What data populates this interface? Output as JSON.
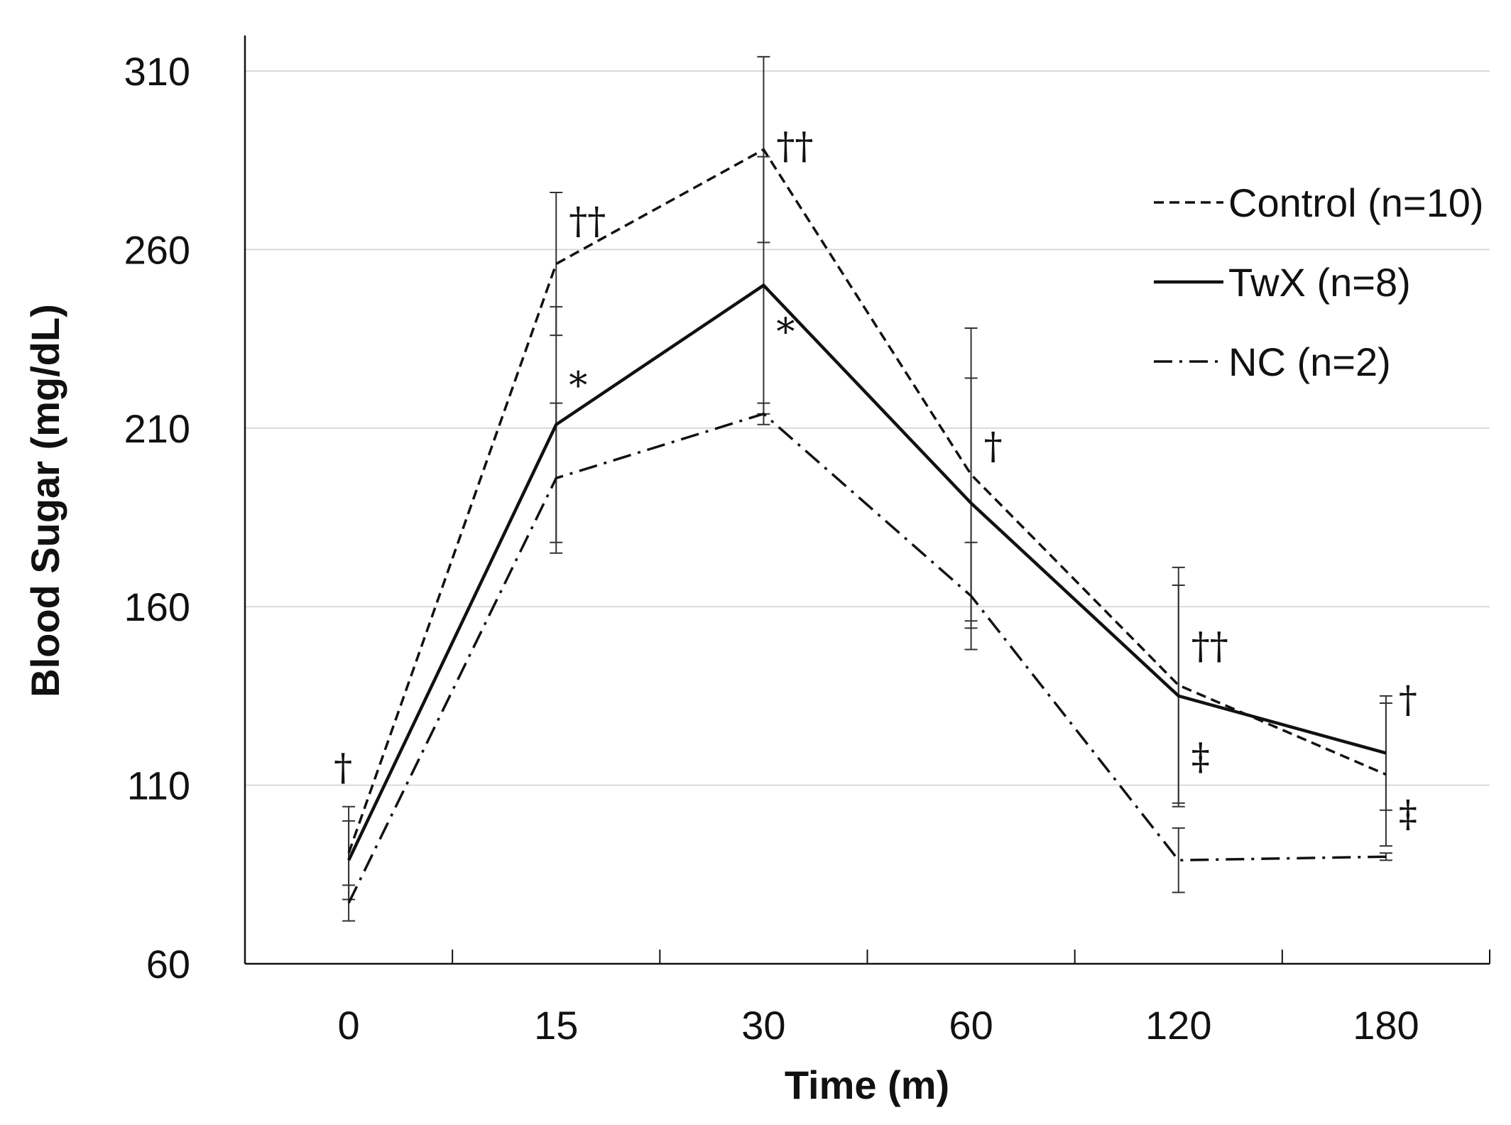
{
  "chart_data": {
    "type": "line",
    "xlabel": "Time (m)",
    "ylabel": "Blood Sugar (mg/dL)",
    "categories": [
      "0",
      "15",
      "30",
      "60",
      "120",
      "180"
    ],
    "ylim": [
      60,
      310
    ],
    "yticks": [
      "60",
      "110",
      "160",
      "210",
      "260",
      "310"
    ],
    "grid": "horizontal",
    "legend_position": "top-right",
    "series": [
      {
        "name": "Control (n=10)",
        "style": "dashed",
        "color": "#111111",
        "values": [
          91,
          256,
          288,
          197,
          138,
          113
        ],
        "error": [
          13,
          20,
          26,
          41,
          33,
          20
        ]
      },
      {
        "name": "TwX (n=8)",
        "style": "solid",
        "color": "#111111",
        "values": [
          89,
          211,
          250,
          189,
          135,
          119
        ],
        "error": [
          11,
          33,
          36,
          35,
          31,
          16
        ]
      },
      {
        "name": "NC (n=2)",
        "style": "dash-dot",
        "color": "#111111",
        "values": [
          77,
          196,
          214,
          163,
          89,
          90
        ],
        "error": [
          5,
          21,
          3,
          15,
          9,
          1
        ]
      }
    ],
    "annotations": [
      {
        "text": "†",
        "category": "0",
        "y": 115
      },
      {
        "text": "††",
        "category": "15",
        "y": 268
      },
      {
        "text": "*",
        "category": "15",
        "y": 222
      },
      {
        "text": "††",
        "category": "30",
        "y": 289
      },
      {
        "text": "*",
        "category": "30",
        "y": 237
      },
      {
        "text": "†",
        "category": "60",
        "y": 205
      },
      {
        "text": "††",
        "category": "120",
        "y": 149
      },
      {
        "text": "‡",
        "category": "120",
        "y": 118
      },
      {
        "text": "†",
        "category": "180",
        "y": 134
      },
      {
        "text": "‡",
        "category": "180",
        "y": 102
      }
    ]
  }
}
